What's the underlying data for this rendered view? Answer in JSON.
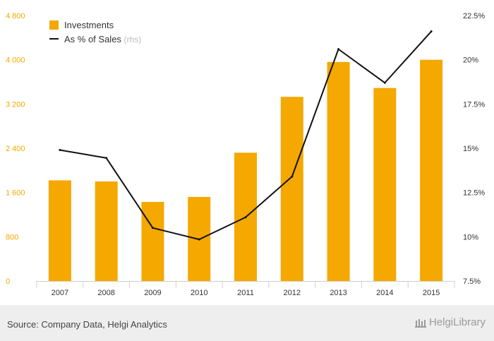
{
  "chart_data": {
    "type": "bar",
    "categories": [
      "2007",
      "2008",
      "2009",
      "2010",
      "2011",
      "2012",
      "2013",
      "2014",
      "2015"
    ],
    "series": [
      {
        "name": "Investments",
        "type": "bar",
        "axis": "left",
        "color": "#f5a800",
        "values": [
          1820,
          1800,
          1430,
          1520,
          2320,
          3330,
          3960,
          3490,
          4000
        ]
      },
      {
        "name": "As % of Sales",
        "name_suffix": "(rhs)",
        "type": "line",
        "axis": "right",
        "color": "#111111",
        "values": [
          14.9,
          14.45,
          10.5,
          9.85,
          11.1,
          13.4,
          20.6,
          18.7,
          21.6
        ]
      }
    ],
    "y_left": {
      "ticks": [
        "0",
        "800",
        "1 600",
        "2 400",
        "3 200",
        "4 000",
        "4 800"
      ],
      "ylim": [
        0,
        4800
      ]
    },
    "y_right": {
      "ticks": [
        "7.5%",
        "10%",
        "12.5%",
        "15%",
        "17.5%",
        "20%",
        "22.5%"
      ],
      "ylim": [
        7.5,
        22.5
      ]
    },
    "grid": false,
    "legend": "top-left"
  },
  "footer": {
    "source": "Source: Company Data, Helgi Analytics",
    "brand": "HelgiLibrary"
  }
}
